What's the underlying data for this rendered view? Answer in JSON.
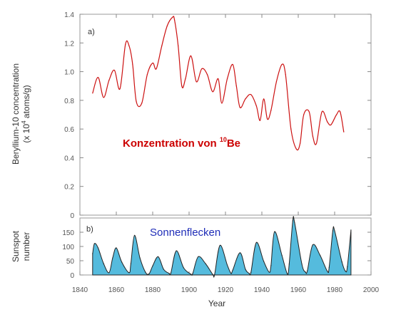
{
  "chart_data": [
    {
      "type": "line",
      "panel_label": "a)",
      "annotation": "Konzentration von ",
      "annotation_sup": "10",
      "annotation_tail": "Be",
      "ylabel_line1": "Beryllium-10 concentration",
      "ylabel_line2": "(x 10",
      "ylabel_sup": "4",
      "ylabel_tail": " atoms/g)",
      "ylim": [
        0,
        1.4
      ],
      "yticks": [
        "0",
        "0.2",
        "0.4",
        "0.6",
        "0.8",
        "1.0",
        "1.2",
        "1.4"
      ],
      "x": [
        1847,
        1850,
        1853,
        1856,
        1859,
        1862,
        1865,
        1867,
        1869,
        1871,
        1874,
        1877,
        1880,
        1882,
        1885,
        1888,
        1891,
        1892,
        1894,
        1896,
        1898,
        1901,
        1904,
        1907,
        1910,
        1913,
        1916,
        1918,
        1921,
        1924,
        1926,
        1928,
        1931,
        1934,
        1937,
        1939,
        1941,
        1943,
        1945,
        1948,
        1951,
        1953,
        1956,
        1959,
        1961,
        1963,
        1966,
        1968,
        1970,
        1973,
        1976,
        1978,
        1981,
        1983,
        1985
      ],
      "values": [
        0.85,
        0.96,
        0.82,
        0.94,
        1.01,
        0.88,
        1.19,
        1.18,
        1.05,
        0.79,
        0.78,
        0.98,
        1.06,
        1.02,
        1.18,
        1.32,
        1.38,
        1.36,
        1.18,
        0.9,
        0.95,
        1.11,
        0.93,
        1.02,
        0.98,
        0.86,
        0.95,
        0.78,
        0.95,
        1.05,
        0.9,
        0.75,
        0.81,
        0.84,
        0.76,
        0.66,
        0.81,
        0.67,
        0.73,
        0.93,
        1.05,
        0.98,
        0.6,
        0.46,
        0.5,
        0.7,
        0.72,
        0.55,
        0.5,
        0.72,
        0.65,
        0.63,
        0.7,
        0.72,
        0.58
      ],
      "color": "#cc1111",
      "grid": false
    },
    {
      "type": "area",
      "panel_label": "b)",
      "annotation": "Sonnenflecken",
      "ylabel_line1": "Sunspot",
      "ylabel_line2": "number",
      "ylim": [
        0,
        200
      ],
      "yticks": [
        "0",
        "50",
        "100",
        "150"
      ],
      "xlabel": "Year",
      "xlim": [
        1840,
        2000
      ],
      "xticks": [
        "1840",
        "1860",
        "1880",
        "1900",
        "1920",
        "1940",
        "1960",
        "1980",
        "2000"
      ],
      "x": [
        1847,
        1848,
        1850,
        1853,
        1856,
        1858,
        1860,
        1863,
        1867,
        1868,
        1870,
        1873,
        1876,
        1878,
        1880,
        1883,
        1886,
        1889,
        1890,
        1893,
        1897,
        1901,
        1902,
        1905,
        1909,
        1913,
        1914,
        1917,
        1921,
        1923,
        1924,
        1928,
        1931,
        1933,
        1934,
        1937,
        1941,
        1944,
        1945,
        1947,
        1951,
        1954,
        1955,
        1957,
        1958,
        1962,
        1964,
        1965,
        1968,
        1972,
        1976,
        1977,
        1979,
        1980,
        1984,
        1986,
        1987,
        1989
      ],
      "values": [
        75,
        110,
        95,
        40,
        8,
        60,
        95,
        45,
        8,
        40,
        139,
        60,
        10,
        4,
        32,
        64,
        20,
        6,
        7,
        85,
        25,
        3,
        5,
        64,
        40,
        2,
        1,
        104,
        35,
        6,
        17,
        78,
        20,
        6,
        9,
        114,
        48,
        10,
        33,
        152,
        69,
        4,
        38,
        190,
        184,
        38,
        10,
        15,
        106,
        69,
        13,
        27,
        155,
        155,
        46,
        13,
        29,
        158
      ],
      "color": "#55bbdd",
      "grid": false
    }
  ]
}
